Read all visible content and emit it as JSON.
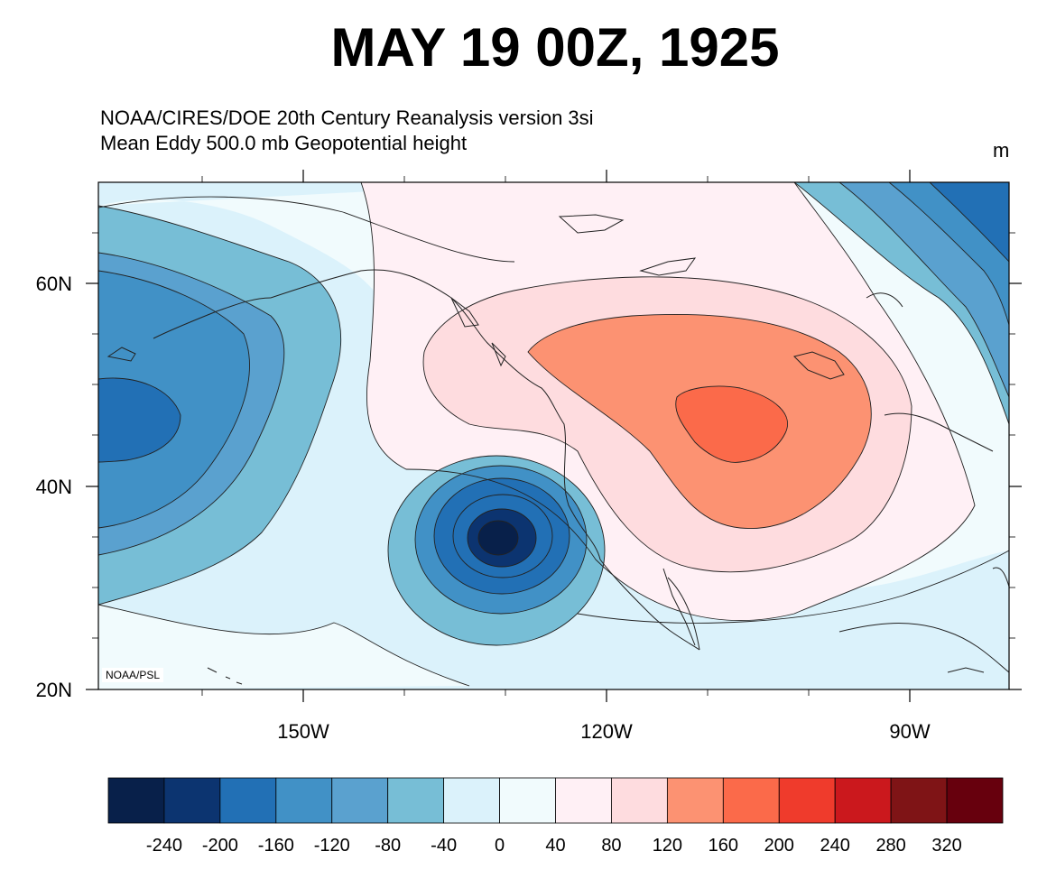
{
  "title": "MAY 19 00Z, 1925",
  "subtitle_line1": "NOAA/CIRES/DOE 20th Century Reanalysis version 3si",
  "subtitle_line2": "Mean Eddy 500.0 mb Geopotential height",
  "units": "m",
  "credit": "NOAA/PSL",
  "map": {
    "projection": "cylindrical equidistant",
    "lon_range": [
      "170W",
      "80W"
    ],
    "lat_range": [
      "20N",
      "70N"
    ],
    "lat_labels": [
      "60N",
      "40N",
      "20N"
    ],
    "lon_labels": [
      "150W",
      "120W",
      "90W"
    ],
    "features": [
      {
        "name": "low center near 34N 135W",
        "value_range": "< -240"
      },
      {
        "name": "high center near 47N 105W",
        "value_range": "200 to 240"
      },
      {
        "name": "low off west edge near 47N 165W",
        "value_range": "-160 to -120"
      },
      {
        "name": "low over Hudson Bay / northeast corner",
        "value_range": "-200 to -160"
      }
    ]
  },
  "colorbar": {
    "labels": [
      "-240",
      "-200",
      "-160",
      "-120",
      "-80",
      "-40",
      "0",
      "40",
      "80",
      "120",
      "160",
      "200",
      "240",
      "280",
      "320"
    ],
    "colors": [
      "#08204a",
      "#0c3470",
      "#2270b5",
      "#4191c6",
      "#5aa1cf",
      "#77bed6",
      "#dbf2fb",
      "#f1fbfd",
      "#fff0f5",
      "#fedcdf",
      "#fc9272",
      "#fb6a4a",
      "#ef3b2c",
      "#cb181d",
      "#7f1416",
      "#67000d"
    ]
  }
}
